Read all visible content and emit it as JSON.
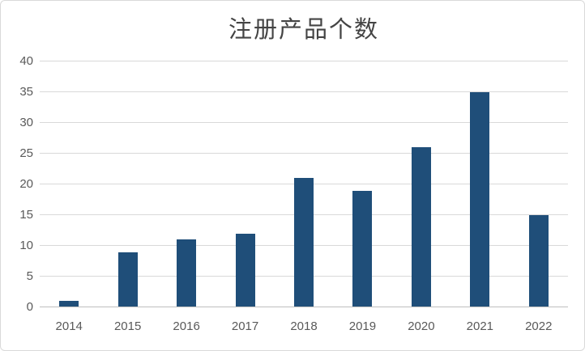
{
  "chart_data": {
    "type": "bar",
    "title": "注册产品个数",
    "categories": [
      "2014",
      "2015",
      "2016",
      "2017",
      "2018",
      "2019",
      "2020",
      "2021",
      "2022"
    ],
    "values": [
      1,
      9,
      11,
      12,
      21,
      19,
      26,
      35,
      15
    ],
    "xlabel": "",
    "ylabel": "",
    "ylim": [
      0,
      40
    ],
    "ytick_step": 5,
    "yticks": [
      0,
      5,
      10,
      15,
      20,
      25,
      30,
      35,
      40
    ],
    "grid": "horizontal",
    "legend": "none",
    "colors": {
      "bar": "#1f4e79",
      "gridline": "#d9d9d9",
      "axis_line": "#bfbfbf",
      "tick_label": "#595959",
      "title": "#444444",
      "background": "#ffffff",
      "border": "#d9d9d9"
    }
  }
}
